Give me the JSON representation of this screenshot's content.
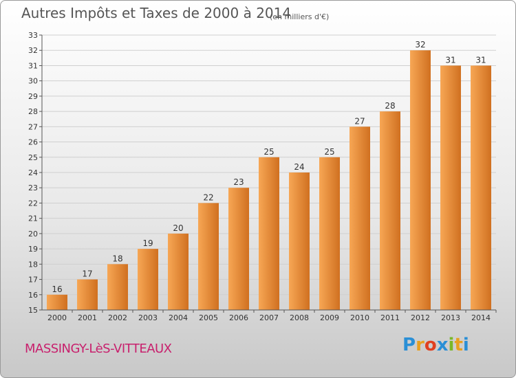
{
  "header": {
    "title": "Autres Impôts et Taxes de 2000 à 2014",
    "unit": "(en milliers d'€)"
  },
  "footer": {
    "commune": "MASSINGY-LèS-VITTEAUX",
    "brand_letters": [
      "P",
      "r",
      "o",
      "x",
      "i",
      "t",
      "i"
    ],
    "brand_colors": [
      "#2a8fd6",
      "#e8a020",
      "#e04020",
      "#2a8fd6",
      "#7ab828",
      "#e8a020",
      "#2a8fd6"
    ]
  },
  "colors": {
    "bar_light": "#f7a755",
    "bar_dark": "#d07020",
    "grid": "#cfcfcf",
    "axis": "#555555"
  },
  "chart_data": {
    "type": "bar",
    "title": "Autres Impôts et Taxes de 2000 à 2014",
    "subtitle": "(en milliers d'€)",
    "categories": [
      "2000",
      "2001",
      "2002",
      "2003",
      "2004",
      "2005",
      "2006",
      "2007",
      "2008",
      "2009",
      "2010",
      "2011",
      "2012",
      "2013",
      "2014"
    ],
    "values": [
      16,
      17,
      18,
      19,
      20,
      22,
      23,
      25,
      24,
      25,
      27,
      28,
      32,
      31,
      31
    ],
    "ylim": [
      15,
      33
    ],
    "yticks": [
      15,
      16,
      17,
      18,
      19,
      20,
      21,
      22,
      23,
      24,
      25,
      26,
      27,
      28,
      29,
      30,
      31,
      32,
      33
    ],
    "grid": true,
    "data_labels": true
  }
}
